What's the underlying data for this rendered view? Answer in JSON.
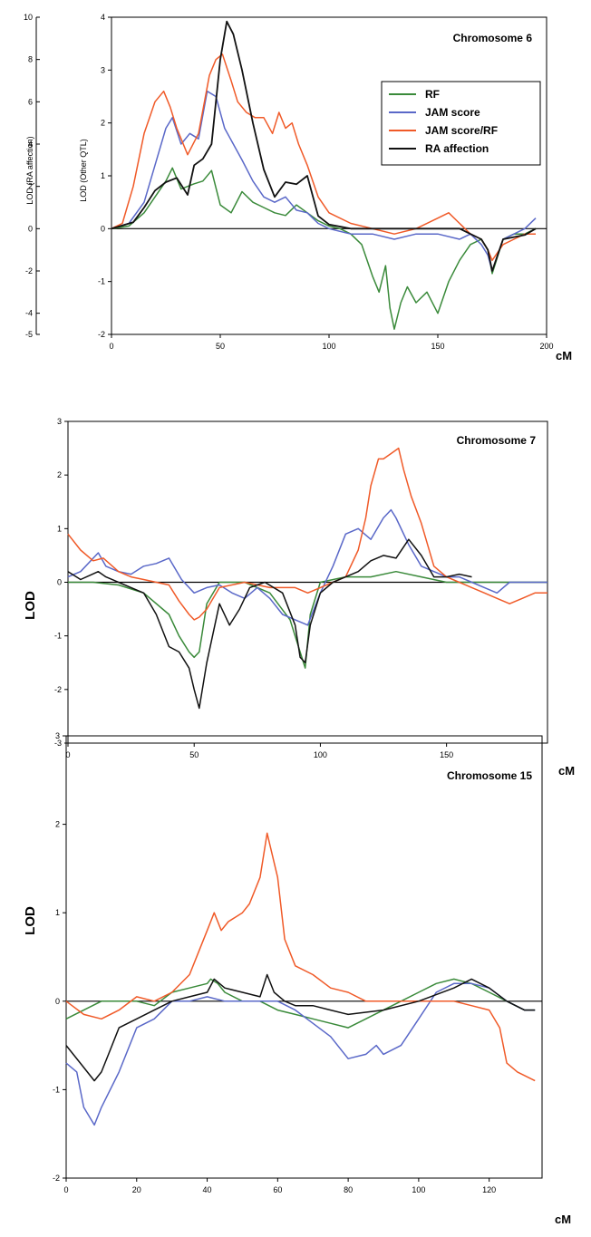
{
  "chart_data": [
    {
      "type": "line",
      "title": "Chromosome 6",
      "xlabel": "cM",
      "ylabel": "LOD (Other QTL)",
      "y2label": "LOD (RA affection)",
      "xlim": [
        0,
        200
      ],
      "ylim": [
        -2,
        4
      ],
      "y2lim": [
        -5,
        10
      ],
      "xticks": [
        "0",
        "50",
        "100",
        "150",
        "200"
      ],
      "yticks": [
        "-2",
        "-1",
        "0",
        "1",
        "2",
        "3",
        "4"
      ],
      "y2ticks": [
        "-5",
        "-4",
        "-2",
        "0",
        "2",
        "4",
        "6",
        "8",
        "10"
      ],
      "legend": "top-right",
      "series": [
        {
          "name": "RF",
          "color": "#3a8a3a",
          "x": [
            0,
            8,
            15,
            20,
            25,
            28,
            32,
            38,
            42,
            46,
            50,
            55,
            60,
            65,
            70,
            75,
            80,
            85,
            90,
            95,
            100,
            105,
            110,
            115,
            120,
            123,
            126,
            128,
            130,
            133,
            136,
            140,
            145,
            150,
            155,
            160,
            165,
            170,
            173,
            175,
            180,
            185,
            190,
            195
          ],
          "y": [
            0,
            0.05,
            0.3,
            0.6,
            0.9,
            1.15,
            0.75,
            0.85,
            0.9,
            1.1,
            0.45,
            0.3,
            0.7,
            0.5,
            0.4,
            0.3,
            0.25,
            0.45,
            0.3,
            0.15,
            0.05,
            0,
            -0.1,
            -0.3,
            -0.9,
            -1.2,
            -0.7,
            -1.5,
            -1.9,
            -1.4,
            -1.1,
            -1.4,
            -1.2,
            -1.6,
            -1.0,
            -0.6,
            -0.3,
            -0.2,
            -0.4,
            -0.85,
            -0.2,
            -0.1,
            -0.1,
            0
          ]
        },
        {
          "name": "JAM score",
          "color": "#5a68c8",
          "x": [
            0,
            8,
            15,
            20,
            25,
            28,
            32,
            36,
            40,
            44,
            48,
            52,
            56,
            60,
            65,
            70,
            75,
            80,
            85,
            90,
            95,
            100,
            110,
            120,
            130,
            140,
            150,
            160,
            165,
            170,
            173,
            175,
            180,
            185,
            190,
            195
          ],
          "y": [
            0,
            0.1,
            0.5,
            1.2,
            1.9,
            2.1,
            1.6,
            1.8,
            1.7,
            2.6,
            2.5,
            1.9,
            1.6,
            1.3,
            0.9,
            0.6,
            0.5,
            0.6,
            0.35,
            0.3,
            0.1,
            0,
            -0.1,
            -0.1,
            -0.2,
            -0.1,
            -0.1,
            -0.2,
            -0.1,
            -0.3,
            -0.5,
            -0.8,
            -0.2,
            -0.1,
            0,
            0.2
          ]
        },
        {
          "name": "JAM score/RF",
          "color": "#f05a28",
          "x": [
            0,
            5,
            10,
            15,
            20,
            24,
            27,
            30,
            35,
            40,
            45,
            48,
            51,
            55,
            58,
            62,
            66,
            70,
            74,
            77,
            80,
            83,
            86,
            90,
            95,
            100,
            110,
            120,
            130,
            140,
            150,
            155,
            160,
            165,
            170,
            173,
            175,
            180,
            185,
            190,
            195
          ],
          "y": [
            0,
            0.1,
            0.8,
            1.8,
            2.4,
            2.6,
            2.3,
            1.9,
            1.4,
            1.8,
            2.9,
            3.2,
            3.3,
            2.8,
            2.4,
            2.2,
            2.1,
            2.1,
            1.8,
            2.2,
            1.9,
            2.0,
            1.6,
            1.2,
            0.6,
            0.3,
            0.1,
            0,
            -0.1,
            0,
            0.2,
            0.3,
            0.1,
            -0.1,
            -0.2,
            -0.4,
            -0.6,
            -0.3,
            -0.2,
            -0.1,
            -0.1
          ]
        },
        {
          "name": "RA affection",
          "color": "#111111",
          "x": [
            0,
            10,
            15,
            20,
            25,
            30,
            35,
            38,
            42,
            46,
            50,
            53,
            56,
            60,
            65,
            70,
            75,
            80,
            85,
            90,
            95,
            100,
            110,
            120,
            140,
            160,
            170,
            173,
            175,
            180,
            190,
            195
          ],
          "y": [
            0,
            0.3,
            1.0,
            1.8,
            2.2,
            2.4,
            1.6,
            3.0,
            3.3,
            4.0,
            8.0,
            9.8,
            9.2,
            7.5,
            5.0,
            2.8,
            1.5,
            2.2,
            2.1,
            2.5,
            0.6,
            0.2,
            0,
            0,
            0,
            0,
            -0.5,
            -1.0,
            -2.0,
            -0.5,
            -0.3,
            0
          ]
        }
      ]
    },
    {
      "type": "line",
      "title": "Chromosome 7",
      "xlabel": "cM",
      "ylabel": "LOD",
      "xlim": [
        0,
        190
      ],
      "ylim": [
        -3,
        3
      ],
      "xticks": [
        "0",
        "50",
        "100",
        "150"
      ],
      "yticks": [
        "-3",
        "-2",
        "-1",
        "0",
        "1",
        "2",
        "3"
      ],
      "series": [
        {
          "name": "RF",
          "color": "#3a8a3a",
          "x": [
            0,
            10,
            20,
            30,
            40,
            44,
            48,
            50,
            52,
            55,
            60,
            70,
            80,
            88,
            92,
            94,
            96,
            100,
            110,
            120,
            130,
            140,
            150,
            160,
            170,
            180,
            190
          ],
          "y": [
            0,
            0,
            -0.05,
            -0.2,
            -0.6,
            -1.0,
            -1.3,
            -1.4,
            -1.3,
            -0.4,
            0,
            0,
            -0.2,
            -0.7,
            -1.3,
            -1.6,
            -0.6,
            0,
            0.1,
            0.1,
            0.2,
            0.1,
            0,
            0,
            0,
            0,
            0
          ]
        },
        {
          "name": "JAM score",
          "color": "#5a68c8",
          "x": [
            0,
            5,
            12,
            15,
            20,
            25,
            30,
            35,
            40,
            45,
            50,
            55,
            60,
            65,
            70,
            75,
            80,
            85,
            90,
            95,
            100,
            105,
            110,
            115,
            120,
            125,
            128,
            130,
            135,
            140,
            145,
            150,
            155,
            160,
            165,
            170,
            175,
            180,
            185,
            190
          ],
          "y": [
            0.1,
            0.2,
            0.55,
            0.3,
            0.2,
            0.15,
            0.3,
            0.35,
            0.45,
            0.05,
            -0.2,
            -0.1,
            -0.05,
            -0.2,
            -0.3,
            -0.1,
            -0.3,
            -0.6,
            -0.7,
            -0.8,
            -0.2,
            0.3,
            0.9,
            1.0,
            0.8,
            1.2,
            1.35,
            1.2,
            0.7,
            0.3,
            0.2,
            0.1,
            0.1,
            0,
            -0.1,
            -0.2,
            0,
            0,
            0,
            0
          ]
        },
        {
          "name": "JAM score/RF",
          "color": "#f05a28",
          "x": [
            0,
            5,
            10,
            14,
            20,
            25,
            30,
            35,
            40,
            44,
            48,
            50,
            52,
            55,
            60,
            70,
            80,
            90,
            95,
            100,
            105,
            110,
            115,
            118,
            120,
            123,
            125,
            128,
            131,
            133,
            136,
            140,
            145,
            150,
            155,
            160,
            165,
            170,
            175,
            180,
            185,
            190
          ],
          "y": [
            0.9,
            0.6,
            0.4,
            0.45,
            0.2,
            0.1,
            0.05,
            0,
            -0.05,
            -0.35,
            -0.6,
            -0.7,
            -0.65,
            -0.5,
            -0.1,
            0,
            -0.1,
            -0.1,
            -0.2,
            -0.1,
            0,
            0.1,
            0.6,
            1.2,
            1.8,
            2.3,
            2.3,
            2.4,
            2.5,
            2.1,
            1.6,
            1.1,
            0.3,
            0.1,
            0,
            -0.1,
            -0.2,
            -0.3,
            -0.4,
            -0.3,
            -0.2,
            -0.2
          ]
        },
        {
          "name": "RA affection",
          "color": "#111111",
          "x": [
            0,
            5,
            12,
            15,
            20,
            25,
            30,
            35,
            40,
            44,
            48,
            50,
            52,
            55,
            60,
            64,
            68,
            72,
            78,
            85,
            90,
            92,
            94,
            96,
            100,
            105,
            110,
            115,
            120,
            125,
            130,
            135,
            140,
            145,
            150,
            155,
            160
          ],
          "y": [
            0.2,
            0.05,
            0.2,
            0.1,
            0,
            -0.1,
            -0.2,
            -0.6,
            -1.2,
            -1.3,
            -1.6,
            -2.0,
            -2.35,
            -1.5,
            -0.4,
            -0.8,
            -0.5,
            -0.1,
            0,
            -0.2,
            -0.8,
            -1.4,
            -1.5,
            -0.8,
            -0.2,
            0,
            0.1,
            0.2,
            0.4,
            0.5,
            0.45,
            0.8,
            0.5,
            0.1,
            0.1,
            0.15,
            0.1
          ]
        }
      ]
    },
    {
      "type": "line",
      "title": "Chromosome 15",
      "xlabel": "cM",
      "ylabel": "LOD",
      "xlim": [
        0,
        135
      ],
      "ylim": [
        -2,
        3
      ],
      "xticks": [
        "0",
        "20",
        "40",
        "60",
        "80",
        "100",
        "120"
      ],
      "yticks": [
        "-2",
        "-1",
        "0",
        "1",
        "2",
        "3"
      ],
      "series": [
        {
          "name": "RF",
          "color": "#3a8a3a",
          "x": [
            0,
            5,
            10,
            15,
            20,
            25,
            30,
            35,
            40,
            41,
            43,
            45,
            50,
            55,
            60,
            65,
            70,
            75,
            80,
            85,
            90,
            95,
            100,
            105,
            110,
            115,
            120,
            125,
            130,
            133
          ],
          "y": [
            -0.2,
            -0.1,
            0,
            0,
            0,
            -0.05,
            0.1,
            0.15,
            0.2,
            0.25,
            0.2,
            0.1,
            0,
            0,
            -0.1,
            -0.15,
            -0.2,
            -0.25,
            -0.3,
            -0.2,
            -0.1,
            0,
            0.1,
            0.2,
            0.25,
            0.2,
            0.1,
            0,
            -0.1,
            -0.1
          ]
        },
        {
          "name": "JAM score",
          "color": "#5a68c8",
          "x": [
            0,
            3,
            5,
            8,
            10,
            15,
            20,
            25,
            30,
            35,
            40,
            45,
            50,
            55,
            60,
            65,
            70,
            75,
            80,
            85,
            88,
            90,
            95,
            100,
            105,
            110,
            115,
            120,
            125,
            130,
            133
          ],
          "y": [
            -0.7,
            -0.8,
            -1.2,
            -1.4,
            -1.2,
            -0.8,
            -0.3,
            -0.2,
            0,
            0,
            0.05,
            0,
            0,
            0,
            0,
            -0.1,
            -0.25,
            -0.4,
            -0.65,
            -0.6,
            -0.5,
            -0.6,
            -0.5,
            -0.2,
            0.1,
            0.2,
            0.2,
            0.15,
            0,
            -0.1,
            -0.1
          ]
        },
        {
          "name": "JAM score/RF",
          "color": "#f05a28",
          "x": [
            0,
            5,
            10,
            15,
            20,
            25,
            30,
            35,
            38,
            40,
            42,
            44,
            46,
            48,
            50,
            52,
            55,
            57,
            60,
            62,
            65,
            70,
            75,
            80,
            85,
            90,
            95,
            100,
            105,
            110,
            115,
            120,
            123,
            125,
            128,
            133
          ],
          "y": [
            0,
            -0.15,
            -0.2,
            -0.1,
            0.05,
            0,
            0.1,
            0.3,
            0.6,
            0.8,
            1.0,
            0.8,
            0.9,
            0.95,
            1.0,
            1.1,
            1.4,
            1.9,
            1.4,
            0.7,
            0.4,
            0.3,
            0.15,
            0.1,
            0,
            0,
            0,
            0,
            0,
            0,
            -0.05,
            -0.1,
            -0.3,
            -0.7,
            -0.8,
            -0.9
          ]
        },
        {
          "name": "RA affection",
          "color": "#111111",
          "x": [
            0,
            4,
            8,
            10,
            12,
            15,
            20,
            25,
            30,
            35,
            40,
            42,
            45,
            50,
            55,
            57,
            59,
            62,
            65,
            70,
            75,
            80,
            90,
            100,
            110,
            115,
            120,
            125,
            130,
            133
          ],
          "y": [
            -0.5,
            -0.7,
            -0.9,
            -0.8,
            -0.6,
            -0.3,
            -0.2,
            -0.1,
            0,
            0.05,
            0.1,
            0.25,
            0.15,
            0.1,
            0.05,
            0.3,
            0.1,
            0,
            -0.05,
            -0.05,
            -0.1,
            -0.15,
            -0.1,
            0,
            0.15,
            0.25,
            0.15,
            0,
            -0.1,
            -0.1
          ]
        }
      ]
    }
  ]
}
